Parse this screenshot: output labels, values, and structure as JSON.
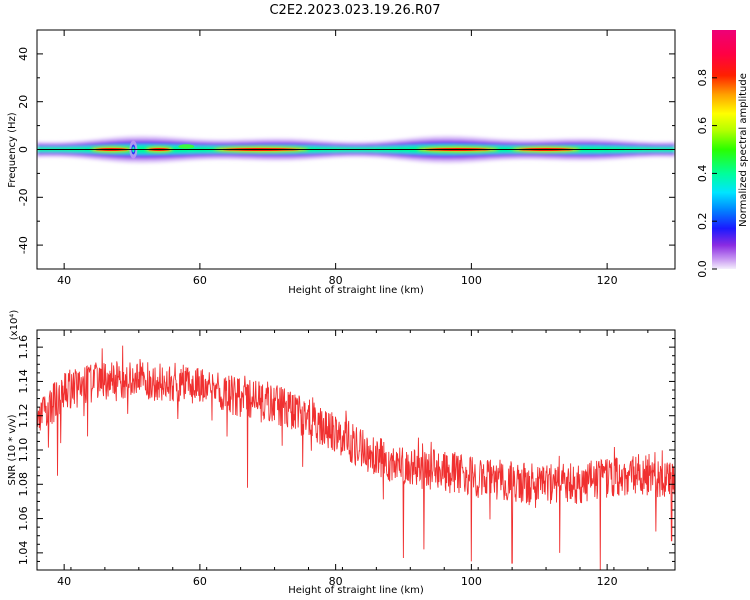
{
  "title": "C2E2.2023.023.19.26.R07",
  "colors": {
    "snr_line": "#f03030",
    "axis": "#000000"
  },
  "chart_data": [
    {
      "type": "heatmap",
      "xlabel": "Height of straight line (km)",
      "ylabel": "Frequency (Hz)",
      "xlim": [
        36,
        130
      ],
      "ylim": [
        -50,
        50
      ],
      "xticks": [
        "40",
        "60",
        "80",
        "100",
        "120"
      ],
      "yticks": [
        "40",
        "20",
        "0",
        "-20",
        "-40"
      ],
      "xtick_values": [
        40,
        60,
        80,
        100,
        120
      ],
      "ytick_values": [
        40,
        20,
        0,
        -20,
        -40
      ],
      "zero_line": true,
      "colorbar": {
        "label": "Normalized spectral amplitude",
        "range": [
          0,
          1
        ],
        "ticks": [
          "0.0",
          "0.2",
          "0.4",
          "0.6",
          "0.8"
        ],
        "tick_values": [
          0,
          0.2,
          0.4,
          0.6,
          0.8
        ],
        "colormap": "rainbow (violet - blue - cyan - green - yellow - red - magenta)"
      },
      "spectral_band": {
        "center_hz": 0,
        "half_width_hz_range": [
          3,
          6
        ],
        "features": [
          {
            "x": 50.2,
            "description": "narrow vertical spike up to about ±8 Hz"
          },
          {
            "x": 58,
            "description": "small green blob slightly above 0 Hz"
          }
        ],
        "strong_segments_km": [
          [
            44,
            50
          ],
          [
            52,
            56
          ],
          [
            62,
            76
          ],
          [
            92,
            104
          ],
          [
            106,
            116
          ]
        ]
      }
    },
    {
      "type": "line",
      "xlabel": "Height of straight line (km)",
      "ylabel": "SNR (10 * v/v)",
      "y_multiplier": "(x10⁴)",
      "xlim": [
        36,
        130
      ],
      "ylim": [
        1.03,
        1.17
      ],
      "xticks": [
        "40",
        "60",
        "80",
        "100",
        "120"
      ],
      "yticks": [
        "1.04",
        "1.06",
        "1.08",
        "1.10",
        "1.12",
        "1.14",
        "1.16"
      ],
      "xtick_values": [
        40,
        60,
        80,
        100,
        120
      ],
      "ytick_values": [
        1.04,
        1.06,
        1.08,
        1.1,
        1.12,
        1.14,
        1.16
      ],
      "trend": {
        "x": [
          36,
          40,
          45,
          50,
          55,
          60,
          65,
          70,
          75,
          80,
          85,
          90,
          95,
          100,
          105,
          110,
          115,
          120,
          125,
          130
        ],
        "y": [
          1.118,
          1.134,
          1.14,
          1.142,
          1.14,
          1.138,
          1.132,
          1.128,
          1.12,
          1.11,
          1.098,
          1.09,
          1.088,
          1.084,
          1.082,
          1.08,
          1.08,
          1.084,
          1.086,
          1.082
        ]
      },
      "noise_amplitude": 0.012,
      "notable_dips": [
        {
          "x": 39,
          "y": 1.085
        },
        {
          "x": 67,
          "y": 1.078
        },
        {
          "x": 90,
          "y": 1.037
        },
        {
          "x": 93,
          "y": 1.042
        },
        {
          "x": 100,
          "y": 1.035
        },
        {
          "x": 106,
          "y": 1.034
        },
        {
          "x": 113,
          "y": 1.04
        },
        {
          "x": 119,
          "y": 1.03
        },
        {
          "x": 129.5,
          "y": 1.047
        }
      ]
    }
  ]
}
